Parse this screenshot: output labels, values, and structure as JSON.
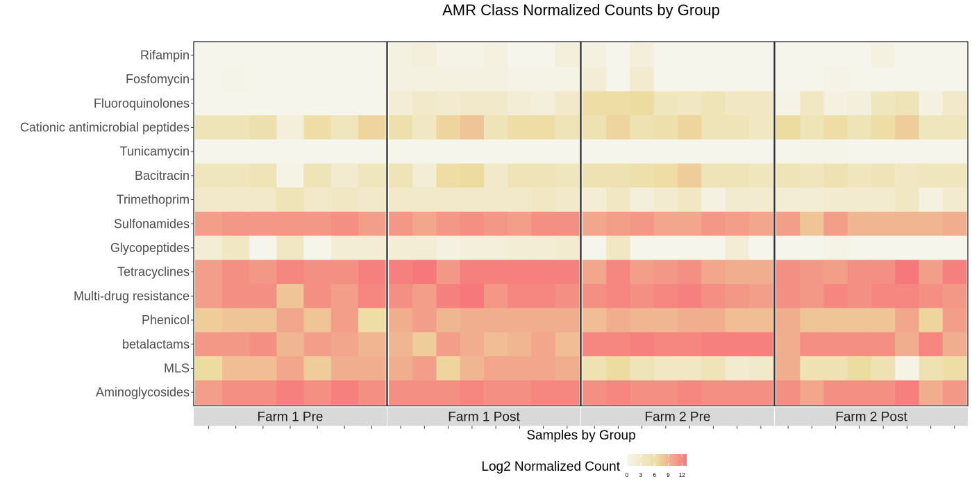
{
  "chart_data": {
    "type": "heatmap",
    "title": "AMR Class Normalized Counts by Group",
    "xlabel": "Samples by Group",
    "legend": {
      "title": "Log2 Normalized Count",
      "ticks": [
        0,
        3,
        6,
        9,
        12
      ],
      "range": [
        0,
        13
      ],
      "low_color": "#f5f5ec",
      "mid_color": "#eddca0",
      "high_color": "#f6787a",
      "position": "bottom"
    },
    "rows": [
      "Rifampin",
      "Fosfomycin",
      "Fluoroquinolones",
      "Cationic antimicrobial peptides",
      "Tunicamycin",
      "Bacitracin",
      "Trimethoprim",
      "Sulfonamides",
      "Glycopeptides",
      "Tetracyclines",
      "Multi-drug resistance",
      "Phenicol",
      "betalactams",
      "MLS",
      "Aminoglycosides"
    ],
    "panels": [
      {
        "name": "Farm 1 Pre",
        "values": [
          [
            0,
            0,
            0,
            0,
            0,
            0,
            0
          ],
          [
            0,
            0.3,
            0,
            0,
            0,
            0,
            0
          ],
          [
            0,
            0,
            0,
            0,
            0,
            0,
            0
          ],
          [
            4.5,
            4.5,
            5.5,
            1.5,
            6,
            4,
            7
          ],
          [
            0,
            0,
            0,
            0,
            0,
            0,
            0
          ],
          [
            4,
            4,
            4.5,
            0.5,
            4.5,
            2.5,
            4
          ],
          [
            3,
            3,
            3,
            4.5,
            3,
            3.5,
            3
          ],
          [
            10.5,
            11,
            11,
            11,
            11,
            11.5,
            10.5
          ],
          [
            2,
            3.5,
            0,
            3.5,
            0,
            2,
            2
          ],
          [
            10.5,
            11.5,
            11,
            12,
            11.5,
            11.5,
            12.5
          ],
          [
            10.5,
            11.5,
            11.5,
            8,
            11.5,
            10.5,
            12
          ],
          [
            7.5,
            8,
            8,
            10,
            8,
            10.5,
            6
          ],
          [
            11,
            11,
            11.5,
            9,
            10.5,
            10,
            9
          ],
          [
            6.5,
            8.5,
            8.5,
            10,
            7.5,
            9.5,
            9.5
          ],
          [
            10.5,
            11.5,
            11.5,
            12.5,
            11.5,
            12.5,
            11.5
          ]
        ]
      },
      {
        "name": "Farm 1 Post",
        "values": [
          [
            1,
            1.5,
            0.5,
            0.5,
            1,
            0,
            0,
            1.5
          ],
          [
            1,
            1,
            1,
            1,
            1,
            0.5,
            0.5,
            0.5
          ],
          [
            2,
            3,
            2.5,
            3,
            3,
            2,
            1.5,
            3
          ],
          [
            5.5,
            3.5,
            7,
            8,
            4.5,
            6,
            6,
            4.5
          ],
          [
            0,
            0,
            0,
            0,
            0,
            0,
            0,
            0
          ],
          [
            4.5,
            2,
            6,
            6.5,
            3,
            4.5,
            4.5,
            4
          ],
          [
            3,
            3,
            3,
            3,
            3,
            3,
            3.5,
            3
          ],
          [
            11,
            10,
            11,
            11.5,
            11,
            10.5,
            11.5,
            11.5
          ],
          [
            2,
            2,
            1,
            1.5,
            1.5,
            2,
            2,
            2.5
          ],
          [
            12.5,
            13,
            11,
            12.5,
            12.5,
            12.5,
            12.5,
            12.5
          ],
          [
            11.5,
            10.5,
            12.5,
            13,
            11,
            12,
            12,
            11.5
          ],
          [
            9.5,
            10.5,
            9,
            9.5,
            9.5,
            9.5,
            9.5,
            9.5
          ],
          [
            9,
            7.5,
            10.5,
            9.5,
            8.5,
            9,
            10,
            8.5
          ],
          [
            9.5,
            10.5,
            7,
            9,
            10,
            10,
            10,
            9.5
          ],
          [
            11.5,
            11.5,
            11.5,
            12,
            11.5,
            11.5,
            12,
            12
          ]
        ]
      },
      {
        "name": "Farm 2 Pre",
        "values": [
          [
            1,
            0,
            1.5,
            0,
            0,
            0,
            0,
            0
          ],
          [
            2,
            0,
            2.5,
            0,
            0,
            0,
            0,
            0
          ],
          [
            6,
            6,
            6.5,
            4,
            3.5,
            4.5,
            3.5,
            3.5
          ],
          [
            5,
            7,
            5,
            5.5,
            7,
            4.5,
            4.5,
            3.5
          ],
          [
            0,
            0,
            0,
            0,
            0,
            0,
            0,
            0
          ],
          [
            5,
            5,
            5.5,
            6,
            7.5,
            4.5,
            4.5,
            4
          ],
          [
            2,
            3.5,
            1.5,
            2.5,
            3.5,
            1,
            2.5,
            2.5
          ],
          [
            10,
            10.5,
            11,
            10,
            10,
            11,
            10.5,
            10
          ],
          [
            0,
            3.5,
            0,
            0,
            0,
            0,
            2,
            0
          ],
          [
            10,
            12,
            10.5,
            11,
            11.5,
            10,
            9.5,
            9.5
          ],
          [
            11.5,
            12,
            11.5,
            12,
            12.5,
            11.5,
            11,
            10.5
          ],
          [
            8.5,
            9.5,
            9,
            9,
            9.5,
            9.5,
            8.5,
            8.5
          ],
          [
            12,
            12,
            12.5,
            12,
            12,
            12.5,
            12.5,
            12.5
          ],
          [
            5,
            6.5,
            4.5,
            3.5,
            3.5,
            4.5,
            2.5,
            3
          ],
          [
            11.5,
            12,
            11.5,
            11.5,
            12,
            11.5,
            11.5,
            11.5
          ]
        ]
      },
      {
        "name": "Farm 2 Post",
        "values": [
          [
            0,
            0,
            0,
            0,
            1,
            0,
            0,
            0
          ],
          [
            0,
            0,
            0.5,
            0,
            0,
            0,
            0,
            0
          ],
          [
            0.5,
            3.5,
            1,
            1.5,
            4,
            4.5,
            1,
            3
          ],
          [
            6.5,
            4.5,
            6,
            4.5,
            6,
            7.5,
            4,
            4
          ],
          [
            0,
            0.3,
            0.3,
            0,
            0,
            0,
            0,
            0
          ],
          [
            4.5,
            4,
            5,
            4,
            4.5,
            3.5,
            4,
            4
          ],
          [
            2,
            2,
            2.5,
            2.5,
            2.5,
            3.5,
            1,
            2.5
          ],
          [
            10.5,
            8,
            10.5,
            9,
            9,
            9,
            9,
            9.5
          ],
          [
            0,
            0,
            0.5,
            0,
            0,
            0,
            0,
            0
          ],
          [
            11.5,
            11,
            10.5,
            11.5,
            11.5,
            13,
            10.5,
            12.5
          ],
          [
            11.5,
            11,
            12,
            11.5,
            12,
            12,
            11.5,
            11
          ],
          [
            9.5,
            8,
            8,
            8,
            8,
            10,
            7,
            10.5
          ],
          [
            9.5,
            11.5,
            11.5,
            11.5,
            11.5,
            9.5,
            12,
            9.5
          ],
          [
            9.5,
            5,
            5,
            6.5,
            5,
            0.5,
            5,
            6
          ],
          [
            11.5,
            10,
            11.5,
            11.5,
            11.5,
            12.5,
            9.5,
            11
          ]
        ]
      }
    ]
  }
}
